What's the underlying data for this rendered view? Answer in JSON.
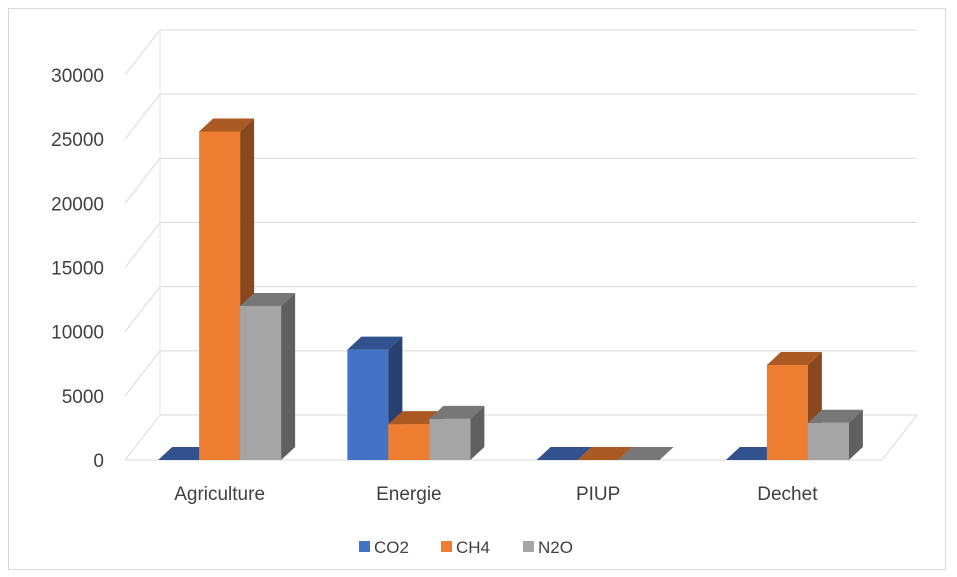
{
  "chart_data": {
    "type": "bar",
    "title": "",
    "xlabel": "",
    "ylabel": "",
    "categories": [
      "Agriculture",
      "Energie",
      "PIUP",
      "Dechet"
    ],
    "series": [
      {
        "name": "CO2",
        "color": "#4472C4",
        "values": [
          0,
          8600,
          0,
          0
        ]
      },
      {
        "name": "CH4",
        "color": "#ED7D31",
        "values": [
          25600,
          2800,
          0,
          7400
        ]
      },
      {
        "name": "N2O",
        "color": "#A5A5A5",
        "values": [
          12000,
          3200,
          0,
          2900
        ]
      }
    ],
    "ylim": [
      0,
      30000
    ],
    "yticks": [
      "0",
      "5000",
      "10000",
      "15000",
      "20000",
      "25000",
      "30000"
    ],
    "grid": true,
    "legend": "bottom-center",
    "style": "3d-clustered-column"
  }
}
